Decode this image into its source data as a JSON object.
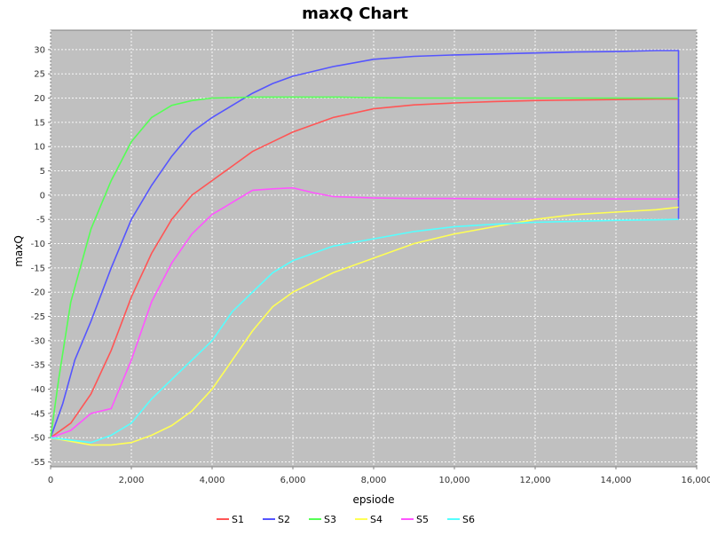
{
  "chart_data": {
    "type": "line",
    "title": "maxQ Chart",
    "xlabel": "epsiode",
    "ylabel": "maxQ",
    "xlim": [
      0,
      16000
    ],
    "ylim": [
      -56,
      34
    ],
    "xticks": [
      0,
      2000,
      4000,
      6000,
      8000,
      10000,
      12000,
      14000,
      16000
    ],
    "xtick_labels": [
      "0",
      "2,000",
      "4,000",
      "6,000",
      "8,000",
      "10,000",
      "12,000",
      "14,000",
      "16,000"
    ],
    "yticks": [
      30,
      25,
      20,
      15,
      10,
      5,
      0,
      -5,
      -10,
      -15,
      -20,
      -25,
      -30,
      -35,
      -40,
      -45,
      -50,
      -55
    ],
    "ytick_labels": [
      "30",
      "25",
      "20",
      "15",
      "10",
      "5",
      "0",
      "-5",
      "-10",
      "-15",
      "-20",
      "-25",
      "-30",
      "-35",
      "-40",
      "-45",
      "-50",
      "-55"
    ],
    "grid": true,
    "legend_position": "bottom",
    "plot_background": "#c0c0c0",
    "series": [
      {
        "name": "S1",
        "color": "#ff5555",
        "x": [
          0,
          500,
          1000,
          1500,
          2000,
          2500,
          3000,
          3500,
          4000,
          4500,
          5000,
          5500,
          6000,
          7000,
          8000,
          9000,
          10000,
          11000,
          12000,
          13000,
          14000,
          15000,
          15550,
          15550
        ],
        "y": [
          -50,
          -47,
          -41,
          -32,
          -21,
          -12,
          -5,
          0,
          3,
          6,
          9,
          11,
          13,
          16,
          17.8,
          18.6,
          19,
          19.3,
          19.5,
          19.6,
          19.7,
          19.8,
          19.8,
          -1
        ]
      },
      {
        "name": "S2",
        "color": "#5555ff",
        "x": [
          0,
          300,
          600,
          1000,
          1500,
          2000,
          2500,
          3000,
          3500,
          4000,
          4500,
          5000,
          5500,
          6000,
          7000,
          8000,
          9000,
          10000,
          11000,
          12000,
          13000,
          14000,
          15000,
          15550,
          15550
        ],
        "y": [
          -50,
          -43,
          -34,
          -26,
          -15,
          -5,
          2,
          8,
          13,
          16,
          18.5,
          21,
          23,
          24.5,
          26.5,
          28,
          28.6,
          28.9,
          29.1,
          29.3,
          29.5,
          29.6,
          29.8,
          29.8,
          -5
        ]
      },
      {
        "name": "S3",
        "color": "#55ff55",
        "x": [
          0,
          200,
          500,
          1000,
          1500,
          2000,
          2500,
          3000,
          3500,
          4000,
          5000,
          6000,
          7000,
          8000,
          9000,
          10000,
          11000,
          12000,
          13000,
          14000,
          15000,
          15550
        ],
        "y": [
          -50,
          -38,
          -22,
          -7,
          3,
          11,
          16,
          18.5,
          19.5,
          20,
          20.2,
          20.2,
          20.2,
          20.1,
          20,
          20,
          20,
          20,
          20,
          20,
          20,
          20
        ]
      },
      {
        "name": "S4",
        "color": "#ffff55",
        "x": [
          0,
          1000,
          1500,
          2000,
          2500,
          3000,
          3500,
          4000,
          4500,
          5000,
          5500,
          6000,
          7000,
          8000,
          9000,
          10000,
          11000,
          12000,
          13000,
          14000,
          15000,
          15550
        ],
        "y": [
          -50,
          -51.5,
          -51.5,
          -51,
          -49.5,
          -47.5,
          -44.5,
          -40,
          -34,
          -28,
          -23,
          -20,
          -16,
          -13,
          -10,
          -8,
          -6.5,
          -5,
          -4,
          -3.5,
          -3,
          -2.5
        ]
      },
      {
        "name": "S5",
        "color": "#ff55ff",
        "x": [
          0,
          500,
          1000,
          1500,
          2000,
          2500,
          3000,
          3500,
          4000,
          4500,
          5000,
          5500,
          6000,
          6500,
          7000,
          8000,
          9000,
          10000,
          11000,
          12000,
          13000,
          14000,
          15000,
          15550
        ],
        "y": [
          -50,
          -48.5,
          -45,
          -44,
          -34,
          -22,
          -14,
          -8,
          -4,
          -1.5,
          1,
          1.3,
          1.5,
          0.5,
          -0.3,
          -0.6,
          -0.7,
          -0.7,
          -0.8,
          -0.8,
          -0.8,
          -0.8,
          -0.8,
          -0.8
        ]
      },
      {
        "name": "S6",
        "color": "#55ffff",
        "x": [
          0,
          1000,
          1500,
          2000,
          2500,
          3000,
          3500,
          4000,
          4500,
          5000,
          5500,
          6000,
          7000,
          8000,
          9000,
          10000,
          11000,
          12000,
          13000,
          14000,
          15000,
          15550
        ],
        "y": [
          -50,
          -51,
          -49.5,
          -47,
          -42,
          -38,
          -34,
          -30,
          -24,
          -20,
          -16,
          -13.5,
          -10.5,
          -9,
          -7.5,
          -6.5,
          -6,
          -5.6,
          -5.4,
          -5.2,
          -5.1,
          -5
        ]
      }
    ]
  }
}
